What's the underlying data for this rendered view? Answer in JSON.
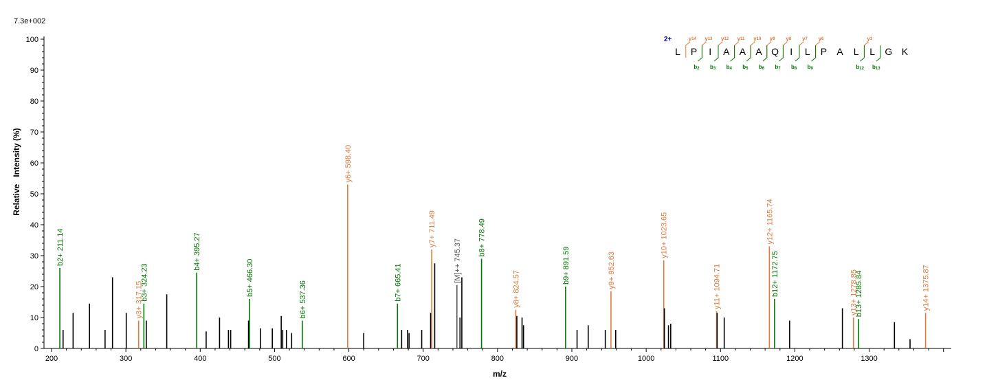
{
  "chart_data": {
    "type": "bar",
    "scale_label": "7.3e+002",
    "xlabel": "m/z",
    "ylabel": "Relative   Intensity (%)",
    "xlim": [
      200,
      1400
    ],
    "ylim": [
      0,
      100
    ],
    "x_ticks": [
      200,
      300,
      400,
      500,
      600,
      700,
      800,
      900,
      1000,
      1100,
      1200,
      1300
    ],
    "y_ticks": [
      0,
      10,
      20,
      30,
      40,
      50,
      60,
      70,
      80,
      90,
      100
    ],
    "colors": {
      "b": "#007700",
      "y": "#e07a3c",
      "other": "#000000",
      "precursor": "#555555",
      "charge": "#00008b"
    },
    "peaks": [
      {
        "mz": 211.14,
        "intensity": 26,
        "type": "b",
        "label": "b2+ 211.14"
      },
      {
        "mz": 215.5,
        "intensity": 6,
        "type": "other"
      },
      {
        "mz": 229.0,
        "intensity": 11.5,
        "type": "other"
      },
      {
        "mz": 251.0,
        "intensity": 14.5,
        "type": "other"
      },
      {
        "mz": 272.0,
        "intensity": 6,
        "type": "other"
      },
      {
        "mz": 282.0,
        "intensity": 23,
        "type": "other"
      },
      {
        "mz": 300.5,
        "intensity": 11.5,
        "type": "other"
      },
      {
        "mz": 317.15,
        "intensity": 9,
        "type": "y",
        "label": "y3+ 317.15"
      },
      {
        "mz": 324.23,
        "intensity": 14.5,
        "type": "b",
        "label": "b3+ 324.23"
      },
      {
        "mz": 327.5,
        "intensity": 9,
        "type": "other"
      },
      {
        "mz": 355.0,
        "intensity": 17.5,
        "type": "other"
      },
      {
        "mz": 395.27,
        "intensity": 24.5,
        "type": "b",
        "label": "b4+ 395.27"
      },
      {
        "mz": 408.0,
        "intensity": 5.5,
        "type": "other"
      },
      {
        "mz": 426.0,
        "intensity": 10,
        "type": "other"
      },
      {
        "mz": 438.0,
        "intensity": 6,
        "type": "other"
      },
      {
        "mz": 441.0,
        "intensity": 6,
        "type": "other"
      },
      {
        "mz": 465.0,
        "intensity": 9,
        "type": "other"
      },
      {
        "mz": 466.3,
        "intensity": 16,
        "type": "b",
        "label": "b5+ 466.30"
      },
      {
        "mz": 481.0,
        "intensity": 6.5,
        "type": "other"
      },
      {
        "mz": 497.0,
        "intensity": 6.5,
        "type": "other"
      },
      {
        "mz": 509.0,
        "intensity": 10.5,
        "type": "other"
      },
      {
        "mz": 511.0,
        "intensity": 6,
        "type": "other"
      },
      {
        "mz": 516.0,
        "intensity": 6,
        "type": "other"
      },
      {
        "mz": 523.0,
        "intensity": 5,
        "type": "other"
      },
      {
        "mz": 537.36,
        "intensity": 9,
        "type": "b",
        "label": "b6+ 537.36"
      },
      {
        "mz": 598.4,
        "intensity": 53,
        "type": "y",
        "label": "y6+ 598.40"
      },
      {
        "mz": 620.0,
        "intensity": 5,
        "type": "other"
      },
      {
        "mz": 665.41,
        "intensity": 14.5,
        "type": "b",
        "label": "b7+ 665.41"
      },
      {
        "mz": 671.0,
        "intensity": 6,
        "type": "other"
      },
      {
        "mz": 679.0,
        "intensity": 6,
        "type": "other"
      },
      {
        "mz": 681.0,
        "intensity": 5,
        "type": "other"
      },
      {
        "mz": 698.0,
        "intensity": 6,
        "type": "other"
      },
      {
        "mz": 710.0,
        "intensity": 11.5,
        "type": "other"
      },
      {
        "mz": 711.49,
        "intensity": 32,
        "type": "y",
        "label": "y7+ 711.49"
      },
      {
        "mz": 715.5,
        "intensity": 27.5,
        "type": "other"
      },
      {
        "mz": 745.37,
        "intensity": 20.5,
        "type": "precursor",
        "label": "[M]++ 745.37"
      },
      {
        "mz": 749.5,
        "intensity": 10,
        "type": "other"
      },
      {
        "mz": 752.0,
        "intensity": 23,
        "type": "other"
      },
      {
        "mz": 778.49,
        "intensity": 29,
        "type": "b",
        "label": "b8+ 778.49"
      },
      {
        "mz": 824.57,
        "intensity": 12.5,
        "type": "y",
        "label": "y8+ 824.57"
      },
      {
        "mz": 826.0,
        "intensity": 10.5,
        "type": "other"
      },
      {
        "mz": 833.0,
        "intensity": 10,
        "type": "other"
      },
      {
        "mz": 835.0,
        "intensity": 7.5,
        "type": "other"
      },
      {
        "mz": 891.59,
        "intensity": 20,
        "type": "b",
        "label": "b9+ 891.59"
      },
      {
        "mz": 907.0,
        "intensity": 6,
        "type": "other"
      },
      {
        "mz": 922.0,
        "intensity": 7.5,
        "type": "other"
      },
      {
        "mz": 945.0,
        "intensity": 6,
        "type": "other"
      },
      {
        "mz": 952.63,
        "intensity": 18.5,
        "type": "y",
        "label": "y9+ 952.63"
      },
      {
        "mz": 959.0,
        "intensity": 6,
        "type": "other"
      },
      {
        "mz": 1023.65,
        "intensity": 28.5,
        "type": "y",
        "label": "y10+ 1023.65"
      },
      {
        "mz": 1024.5,
        "intensity": 13,
        "type": "other"
      },
      {
        "mz": 1030.0,
        "intensity": 7.5,
        "type": "other"
      },
      {
        "mz": 1033.0,
        "intensity": 8,
        "type": "other"
      },
      {
        "mz": 1094.71,
        "intensity": 12,
        "type": "y",
        "label": "y11+ 1094.71"
      },
      {
        "mz": 1095.5,
        "intensity": 11.5,
        "type": "other"
      },
      {
        "mz": 1105.0,
        "intensity": 10,
        "type": "other"
      },
      {
        "mz": 1165.74,
        "intensity": 33,
        "type": "y",
        "label": "y12+ 1165.74"
      },
      {
        "mz": 1172.75,
        "intensity": 16,
        "type": "b",
        "label": "b12+ 1172.75"
      },
      {
        "mz": 1193.0,
        "intensity": 9,
        "type": "other"
      },
      {
        "mz": 1264.0,
        "intensity": 13,
        "type": "other"
      },
      {
        "mz": 1278.85,
        "intensity": 10,
        "type": "y",
        "label": "y13+ 1278.85"
      },
      {
        "mz": 1285.84,
        "intensity": 9.5,
        "type": "b",
        "label": "b13+ 1285.84"
      },
      {
        "mz": 1334.0,
        "intensity": 8.5,
        "type": "other"
      },
      {
        "mz": 1355.0,
        "intensity": 3,
        "type": "other"
      },
      {
        "mz": 1375.87,
        "intensity": 11.5,
        "type": "y",
        "label": "y14+ 1375.87"
      }
    ],
    "sequence": {
      "charge": "2+",
      "residues": [
        "L",
        "P",
        "I",
        "A",
        "A",
        "A",
        "Q",
        "I",
        "L",
        "P",
        "A",
        "L",
        "L",
        "G",
        "K"
      ],
      "y_ions": [
        {
          "label": "y",
          "num": "14",
          "after": 0
        },
        {
          "label": "y",
          "num": "13",
          "after": 1
        },
        {
          "label": "y",
          "num": "12",
          "after": 2
        },
        {
          "label": "y",
          "num": "11",
          "after": 3
        },
        {
          "label": "y",
          "num": "10",
          "after": 4
        },
        {
          "label": "y",
          "num": "9",
          "after": 5
        },
        {
          "label": "y",
          "num": "8",
          "after": 6
        },
        {
          "label": "y",
          "num": "7",
          "after": 7
        },
        {
          "label": "y",
          "num": "6",
          "after": 8
        },
        {
          "label": "y",
          "num": "3",
          "after": 11
        }
      ],
      "b_ions": [
        {
          "label": "b",
          "num": "2",
          "after": 1
        },
        {
          "label": "b",
          "num": "3",
          "after": 2
        },
        {
          "label": "b",
          "num": "4",
          "after": 3
        },
        {
          "label": "b",
          "num": "5",
          "after": 4
        },
        {
          "label": "b",
          "num": "6",
          "after": 5
        },
        {
          "label": "b",
          "num": "7",
          "after": 6
        },
        {
          "label": "b",
          "num": "8",
          "after": 7
        },
        {
          "label": "b",
          "num": "9",
          "after": 8
        },
        {
          "label": "b",
          "num": "12",
          "after": 11
        },
        {
          "label": "b",
          "num": "13",
          "after": 12
        }
      ]
    }
  }
}
